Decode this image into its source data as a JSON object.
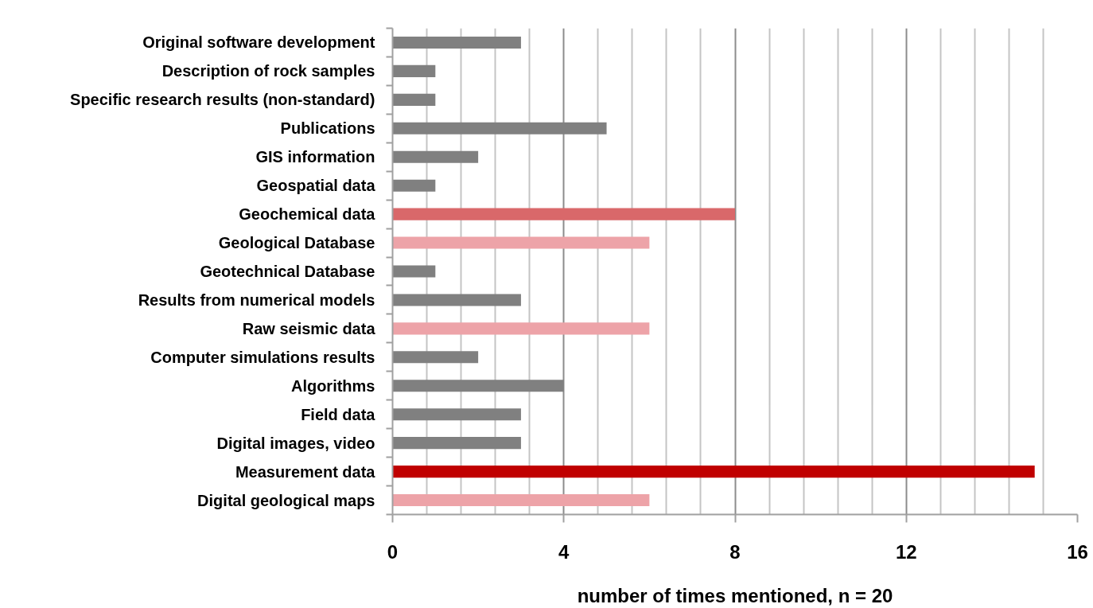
{
  "chart_data": {
    "type": "bar",
    "orientation": "horizontal",
    "xlabel": "number of times mentioned, n = 20",
    "categories": [
      "Original software development",
      "Description of rock samples",
      "Specific research results (non-standard)",
      "Publications",
      "GIS information",
      "Geospatial data",
      "Geochemical data",
      "Geological Database",
      "Geotechnical Database",
      "Results from numerical models",
      "Raw seismic data",
      "Computer simulations results",
      "Algorithms",
      "Field data",
      "Digital images, video",
      "Measurement data",
      "Digital geological maps"
    ],
    "values": [
      3,
      1,
      1,
      5,
      2,
      1,
      8,
      6,
      1,
      3,
      6,
      2,
      4,
      3,
      3,
      15,
      6
    ],
    "colors": [
      "#808080",
      "#808080",
      "#808080",
      "#808080",
      "#808080",
      "#808080",
      "#d9686a",
      "#eda3a8",
      "#808080",
      "#808080",
      "#eda3a8",
      "#808080",
      "#808080",
      "#808080",
      "#808080",
      "#c00000",
      "#eda3a8"
    ],
    "xlim": [
      0,
      16
    ],
    "xticks": [
      0,
      {
        "value": 0.8,
        "label": null
      },
      {
        "value": 1.6,
        "label": null
      },
      {
        "value": 2.4,
        "label": null
      },
      {
        "value": 3.2,
        "label": null
      },
      4,
      {
        "value": 4.8,
        "label": null
      },
      {
        "value": 5.6,
        "label": null
      },
      {
        "value": 6.4,
        "label": null
      },
      {
        "value": 7.2,
        "label": null
      },
      8,
      {
        "value": 8.8,
        "label": null
      },
      {
        "value": 9.6,
        "label": null
      },
      {
        "value": 10.4,
        "label": null
      },
      {
        "value": 11.2,
        "label": null
      },
      12,
      {
        "value": 12.8,
        "label": null
      },
      {
        "value": 13.6,
        "label": null
      },
      {
        "value": 14.4,
        "label": null
      },
      {
        "value": 15.2,
        "label": null
      },
      16
    ],
    "grid": "x"
  }
}
